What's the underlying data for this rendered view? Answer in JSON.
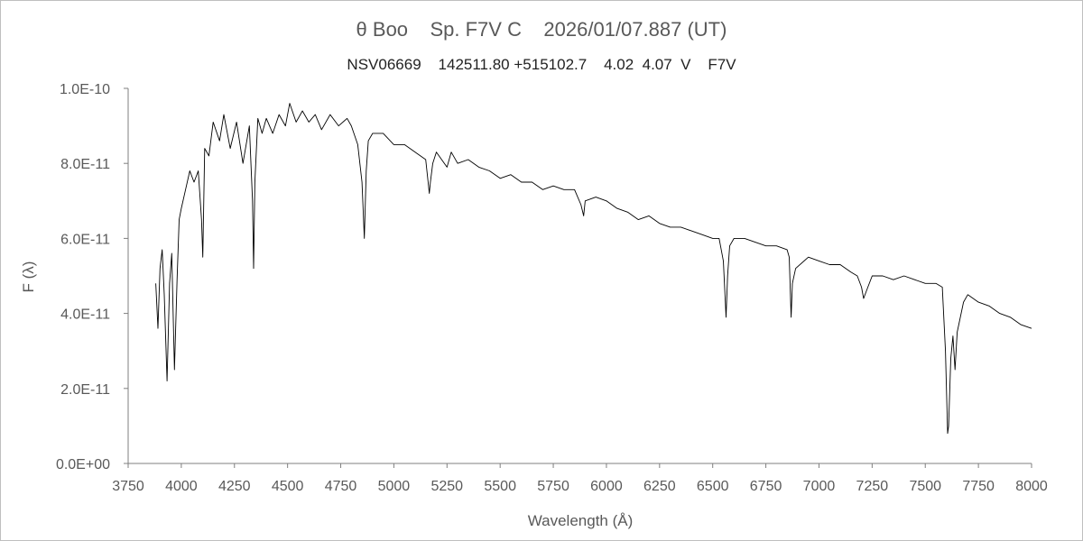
{
  "chart_data": {
    "type": "line",
    "title": "θ Boo    Sp. F7V C    2026/01/07.887 (UT)",
    "subtitle": "NSV06669    142511.80 +515102.7    4.02  4.07  V    F7V",
    "xlabel": "Wavelength (Å)",
    "ylabel": "F (λ)",
    "xlim": [
      3750,
      8000
    ],
    "ylim": [
      0,
      1e-10
    ],
    "x_ticks": [
      "3750",
      "4000",
      "4250",
      "4500",
      "4750",
      "5000",
      "5250",
      "5500",
      "5750",
      "6000",
      "6250",
      "6500",
      "6750",
      "7000",
      "7250",
      "7500",
      "7750",
      "8000"
    ],
    "y_ticks": [
      "0.0E+00",
      "2.0E-11",
      "4.0E-11",
      "6.0E-11",
      "8.0E-11",
      "1.0E-10"
    ],
    "grid": false,
    "series": [
      {
        "color": "#000000",
        "x": [
          3880,
          3890,
          3900,
          3910,
          3920,
          3933,
          3945,
          3955,
          3968,
          3980,
          3990,
          4000,
          4020,
          4040,
          4060,
          4080,
          4095,
          4101,
          4110,
          4130,
          4150,
          4180,
          4200,
          4230,
          4260,
          4290,
          4320,
          4335,
          4340,
          4346,
          4360,
          4380,
          4400,
          4430,
          4460,
          4490,
          4510,
          4540,
          4570,
          4600,
          4630,
          4660,
          4700,
          4740,
          4780,
          4800,
          4830,
          4850,
          4861,
          4870,
          4880,
          4900,
          4950,
          5000,
          5050,
          5100,
          5150,
          5167,
          5172,
          5183,
          5200,
          5250,
          5270,
          5300,
          5350,
          5400,
          5450,
          5500,
          5550,
          5600,
          5650,
          5700,
          5750,
          5800,
          5850,
          5880,
          5893,
          5900,
          5950,
          6000,
          6050,
          6100,
          6150,
          6200,
          6250,
          6300,
          6350,
          6400,
          6450,
          6500,
          6530,
          6550,
          6563,
          6570,
          6580,
          6600,
          6650,
          6700,
          6750,
          6800,
          6850,
          6860,
          6869,
          6875,
          6890,
          6950,
          7000,
          7050,
          7100,
          7150,
          7180,
          7200,
          7210,
          7230,
          7250,
          7300,
          7350,
          7400,
          7450,
          7500,
          7550,
          7580,
          7595,
          7605,
          7610,
          7620,
          7630,
          7640,
          7650,
          7680,
          7700,
          7750,
          7800,
          7850,
          7900,
          7950,
          8000
        ],
        "y": [
          4.8e-11,
          3.6e-11,
          5.2e-11,
          5.7e-11,
          4.5e-11,
          2.2e-11,
          4.8e-11,
          5.6e-11,
          2.5e-11,
          4.9e-11,
          6.5e-11,
          6.8e-11,
          7.3e-11,
          7.8e-11,
          7.5e-11,
          7.8e-11,
          6.5e-11,
          5.5e-11,
          8.4e-11,
          8.2e-11,
          9.1e-11,
          8.6e-11,
          9.3e-11,
          8.4e-11,
          9.1e-11,
          8e-11,
          9e-11,
          7e-11,
          5.2e-11,
          7.5e-11,
          9.2e-11,
          8.8e-11,
          9.2e-11,
          8.8e-11,
          9.3e-11,
          9e-11,
          9.6e-11,
          9.1e-11,
          9.4e-11,
          9.1e-11,
          9.3e-11,
          8.9e-11,
          9.3e-11,
          9e-11,
          9.2e-11,
          9e-11,
          8.5e-11,
          7.5e-11,
          6e-11,
          7.8e-11,
          8.6e-11,
          8.8e-11,
          8.8e-11,
          8.5e-11,
          8.5e-11,
          8.3e-11,
          8.1e-11,
          7.2e-11,
          7.5e-11,
          8e-11,
          8.3e-11,
          7.9e-11,
          8.3e-11,
          8e-11,
          8.1e-11,
          7.9e-11,
          7.8e-11,
          7.6e-11,
          7.7e-11,
          7.5e-11,
          7.5e-11,
          7.3e-11,
          7.4e-11,
          7.3e-11,
          7.3e-11,
          6.9e-11,
          6.6e-11,
          7e-11,
          7.1e-11,
          7e-11,
          6.8e-11,
          6.7e-11,
          6.5e-11,
          6.6e-11,
          6.4e-11,
          6.3e-11,
          6.3e-11,
          6.2e-11,
          6.1e-11,
          6e-11,
          6e-11,
          5.4e-11,
          3.9e-11,
          5e-11,
          5.8e-11,
          6e-11,
          6e-11,
          5.9e-11,
          5.8e-11,
          5.8e-11,
          5.7e-11,
          5.5e-11,
          3.9e-11,
          4.8e-11,
          5.2e-11,
          5.5e-11,
          5.4e-11,
          5.3e-11,
          5.3e-11,
          5.1e-11,
          5e-11,
          4.7e-11,
          4.4e-11,
          4.7e-11,
          5e-11,
          5e-11,
          4.9e-11,
          5e-11,
          4.9e-11,
          4.8e-11,
          4.8e-11,
          4.7e-11,
          3e-11,
          8e-12,
          1e-11,
          2.8e-11,
          3.4e-11,
          2.5e-11,
          3.5e-11,
          4.3e-11,
          4.5e-11,
          4.3e-11,
          4.2e-11,
          4e-11,
          3.9e-11,
          3.7e-11,
          3.6e-11
        ]
      }
    ]
  }
}
